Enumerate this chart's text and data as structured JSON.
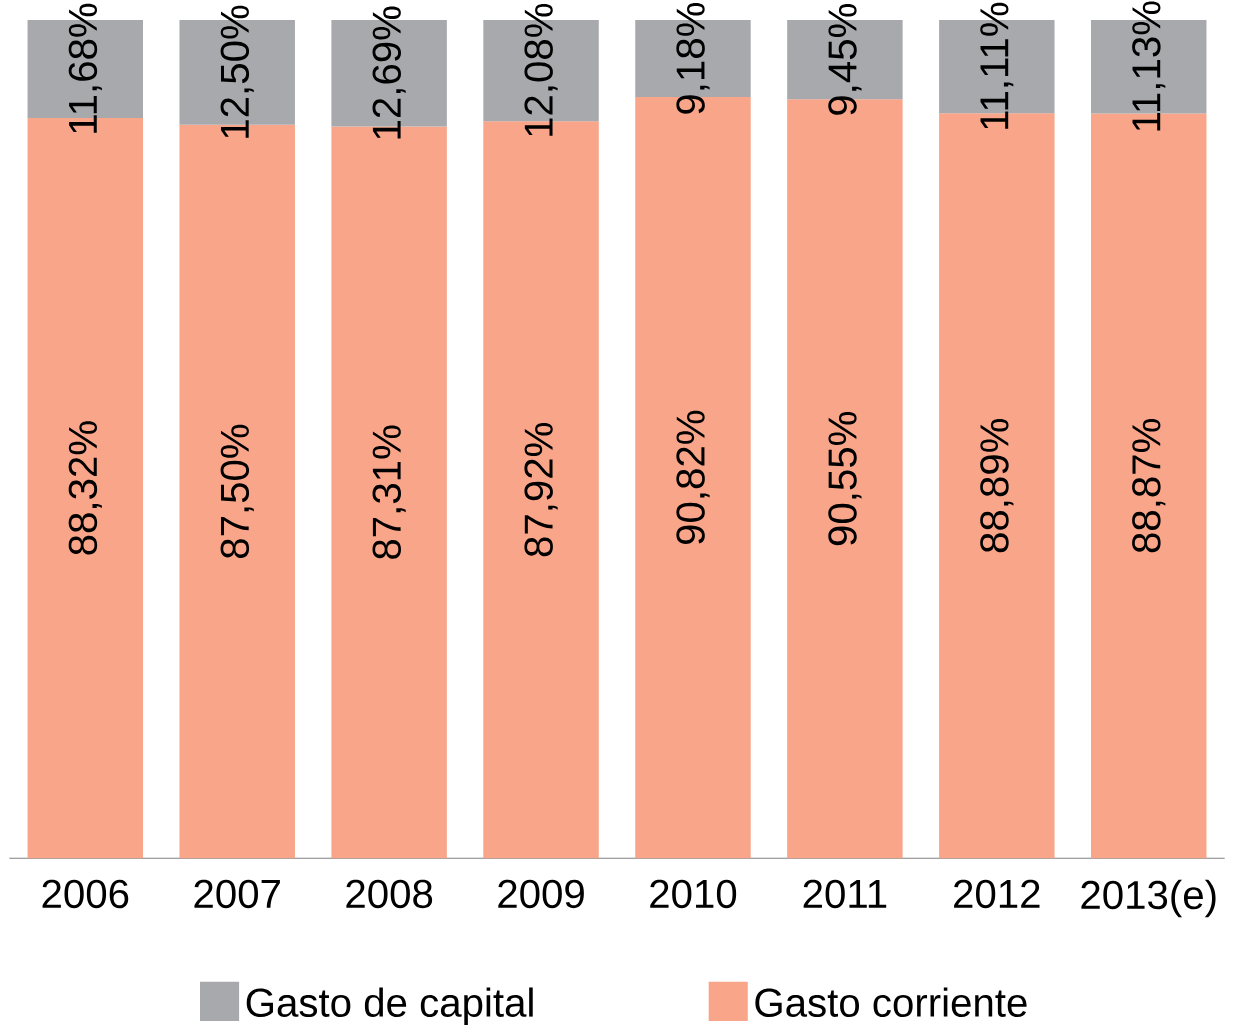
{
  "chart_data": {
    "type": "bar",
    "stacked": true,
    "legend": "bottom",
    "categories": [
      "2006",
      "2007",
      "2008",
      "2009",
      "2010",
      "2011",
      "2012",
      "2013(e)"
    ],
    "series": [
      {
        "name": "Gasto corriente",
        "color": "#f8a589",
        "values": [
          88.32,
          87.5,
          87.31,
          87.92,
          90.82,
          90.55,
          88.89,
          88.87
        ],
        "value_labels": [
          "88,32%",
          "87,50%",
          "87,31%",
          "87,92%",
          "90,82%",
          "90,55%",
          "88,89%",
          "88,87%"
        ]
      },
      {
        "name": "Gasto de capital",
        "color": "#a7a9ac",
        "values": [
          11.68,
          12.5,
          12.69,
          12.08,
          9.18,
          9.45,
          11.11,
          11.13
        ],
        "value_labels": [
          "11,68%",
          "12,50%",
          "12,69%",
          "12,08%",
          "9,18%",
          "9,45%",
          "11,11%",
          "11,13%"
        ]
      }
    ]
  }
}
